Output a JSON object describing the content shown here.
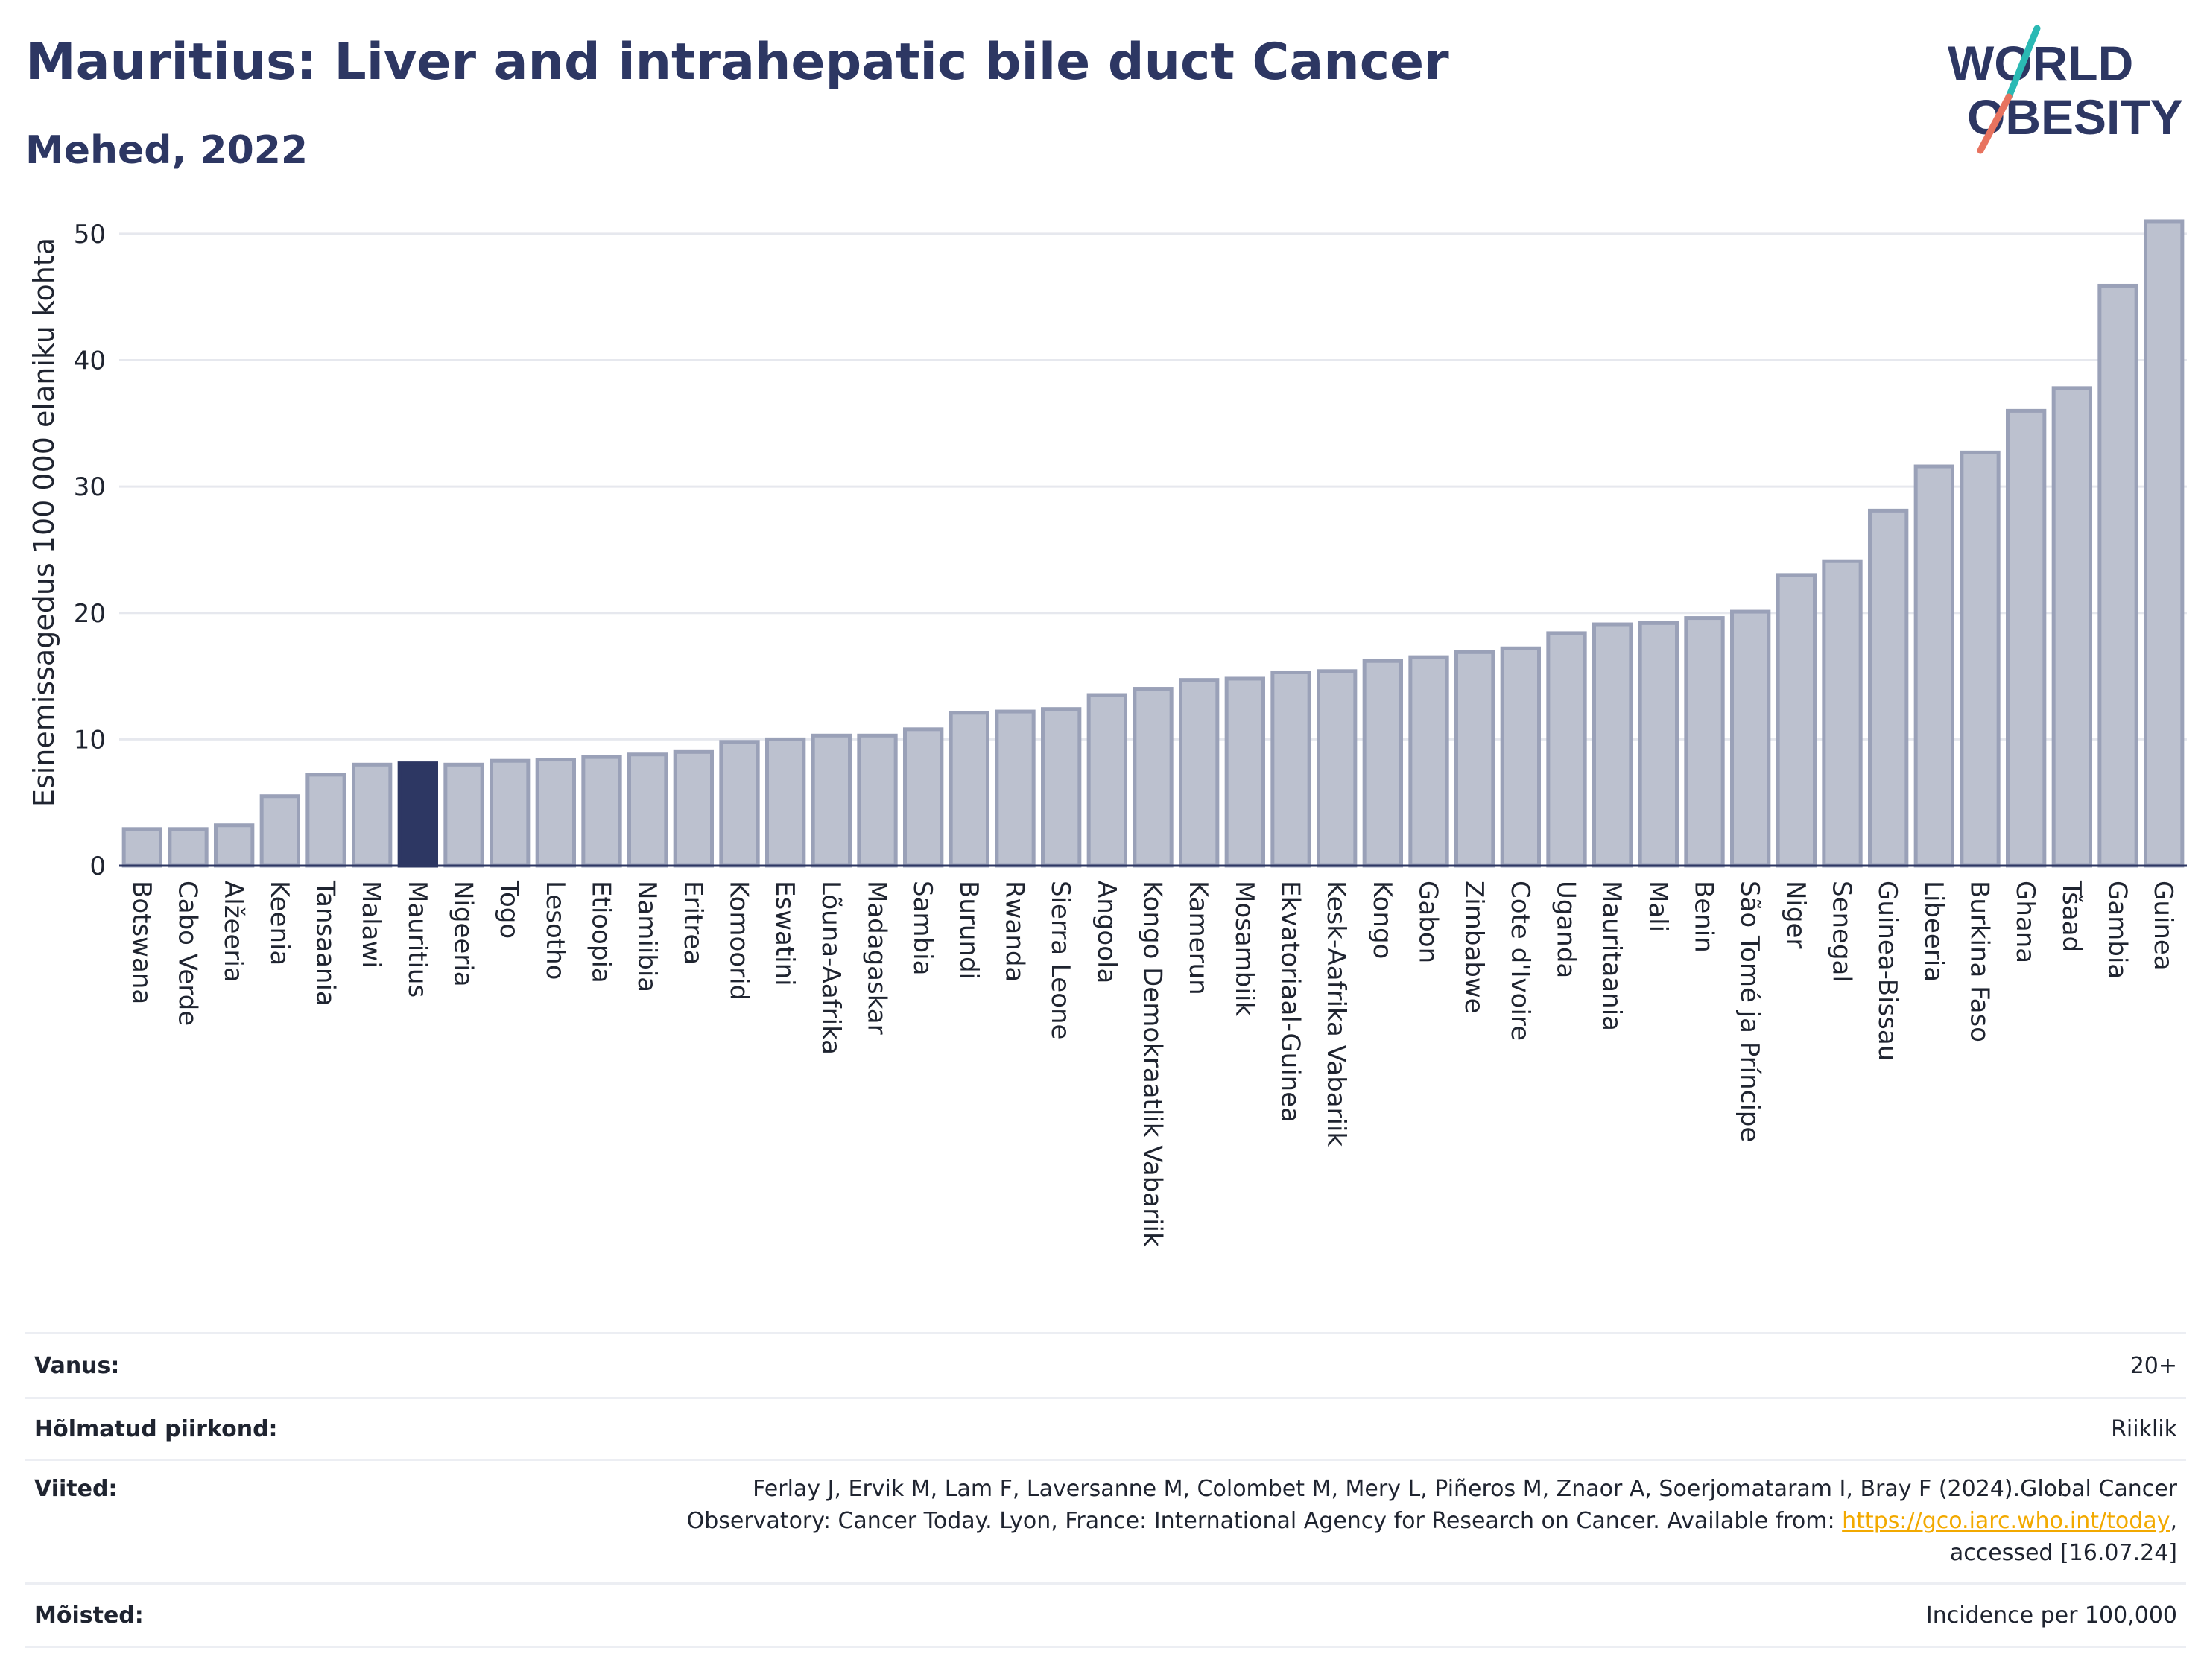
{
  "header": {
    "title": "Mauritius: Liver and intrahepatic bile duct Cancer",
    "subtitle": "Mehed, 2022"
  },
  "logo": {
    "line1": "WORLD",
    "line2": "OBESITY"
  },
  "chart_data": {
    "type": "bar",
    "ylabel": "Esinemissagedus 100 000 elaniku kohta",
    "xlabel": "",
    "ylim": [
      0,
      52
    ],
    "yticks": [
      0,
      10,
      20,
      30,
      40,
      50
    ],
    "grid": true,
    "highlight": "Mauritius",
    "colors": {
      "bar": "#bcc1cf",
      "bar_edge": "#9aa1b8",
      "highlight": "#2d3763",
      "axis": "#2d3763",
      "grid": "#e6e8ee"
    },
    "categories": [
      "Botswana",
      "Cabo Verde",
      "Alžeeria",
      "Keenia",
      "Tansaania",
      "Malawi",
      "Mauritius",
      "Nigeeria",
      "Togo",
      "Lesotho",
      "Etioopia",
      "Namiibia",
      "Eritrea",
      "Komoorid",
      "Eswatini",
      "Lõuna-Aafrika",
      "Madagaskar",
      "Sambia",
      "Burundi",
      "Rwanda",
      "Sierra Leone",
      "Angoola",
      "Kongo Demokraatlik Vabariik",
      "Kamerun",
      "Mosambiik",
      "Ekvatoriaal-Guinea",
      "Kesk-Aafrika Vabariik",
      "Kongo",
      "Gabon",
      "Zimbabwe",
      "Cote d'Ivoire",
      "Uganda",
      "Mauritaania",
      "Mali",
      "Benin",
      "São Tomé ja Príncipe",
      "Niger",
      "Senegal",
      "Guinea-Bissau",
      "Libeeria",
      "Burkina Faso",
      "Ghana",
      "Tšaad",
      "Gambia",
      "Guinea"
    ],
    "values": [
      2.9,
      2.9,
      3.2,
      5.5,
      7.2,
      8.0,
      8.1,
      8.0,
      8.3,
      8.4,
      8.6,
      8.8,
      9.0,
      9.8,
      10.0,
      10.3,
      10.3,
      10.8,
      12.1,
      12.2,
      12.4,
      13.5,
      14.0,
      14.7,
      14.8,
      15.3,
      15.4,
      16.2,
      16.5,
      16.9,
      17.2,
      18.4,
      19.1,
      19.2,
      19.6,
      20.1,
      23.0,
      24.1,
      28.1,
      31.6,
      32.7,
      36.0,
      37.8,
      45.9,
      51.0
    ]
  },
  "meta": {
    "age_label": "Vanus:",
    "age_value": "20+",
    "region_label": "Hõlmatud piirkond:",
    "region_value": "Riiklik",
    "refs_label": "Viited:",
    "refs_line1": "Ferlay J, Ervik M, Lam F, Laversanne M, Colombet M, Mery L, Piñeros M, Znaor A, Soerjomataram I, Bray F (2024).Global Cancer",
    "refs_line2_pre": "Observatory: Cancer Today. Lyon, France: International Agency for Research on Cancer. Available from: ",
    "refs_link": "https://gco.iarc.who.int/today",
    "refs_line2_post": ",",
    "refs_line3": "accessed [16.07.24]",
    "def_label": "Mõisted:",
    "def_value": "Incidence per 100,000"
  }
}
